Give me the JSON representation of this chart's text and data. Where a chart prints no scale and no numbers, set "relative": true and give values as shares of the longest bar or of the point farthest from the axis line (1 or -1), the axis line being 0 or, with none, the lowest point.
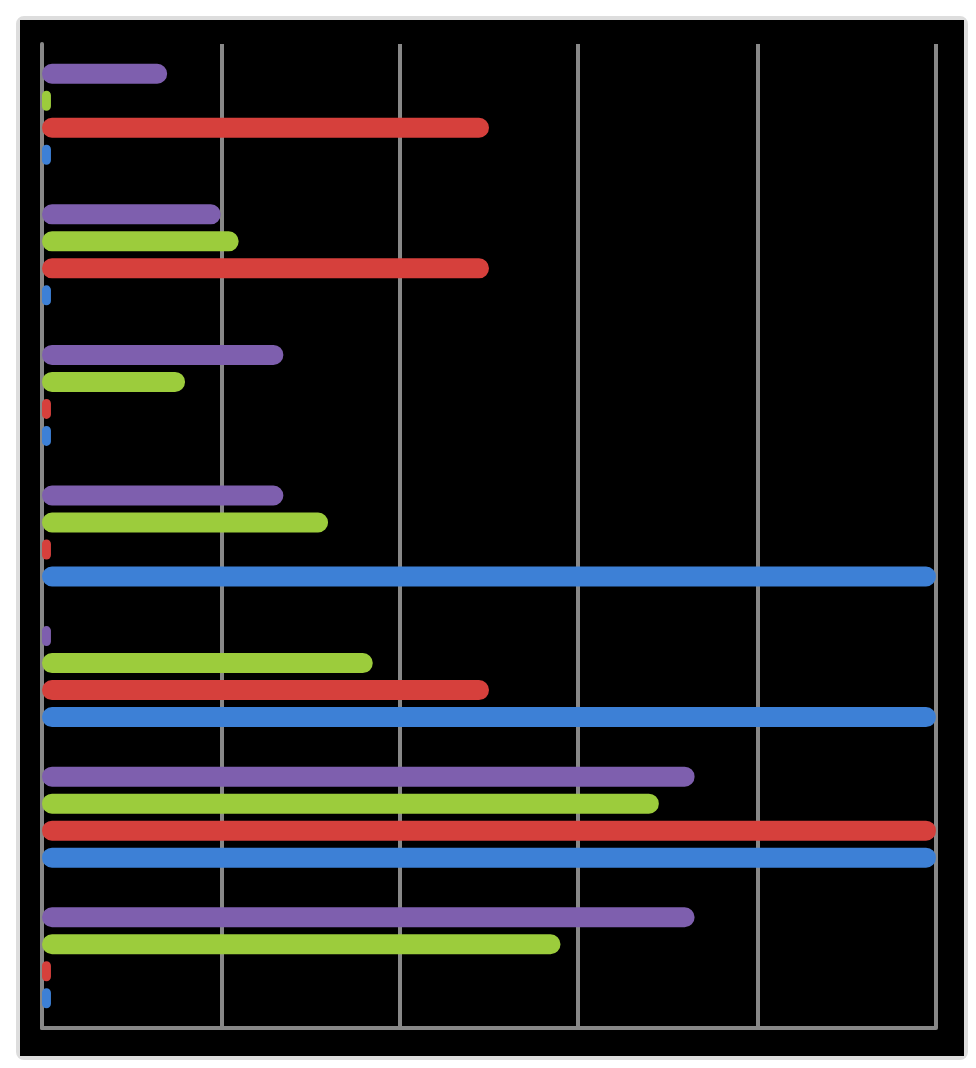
{
  "chart_data": {
    "type": "bar",
    "orientation": "horizontal",
    "relative": true,
    "grid": "x",
    "categories": [
      null,
      null,
      null,
      null,
      null,
      null,
      null
    ],
    "series": [
      {
        "color": "#7e5fae",
        "values": [
          0.14,
          0.2,
          0.27,
          0.27,
          0.01,
          0.73,
          0.73
        ]
      },
      {
        "color": "#9ccc3c",
        "values": [
          0.01,
          0.22,
          0.16,
          0.32,
          0.37,
          0.69,
          0.58
        ]
      },
      {
        "color": "#d6403c",
        "values": [
          0.5,
          0.5,
          0.01,
          0.01,
          0.5,
          1,
          0.01
        ]
      },
      {
        "color": "#3d80d6",
        "values": [
          0.01,
          0.01,
          0.01,
          1,
          1,
          1,
          0.01
        ]
      }
    ]
  }
}
